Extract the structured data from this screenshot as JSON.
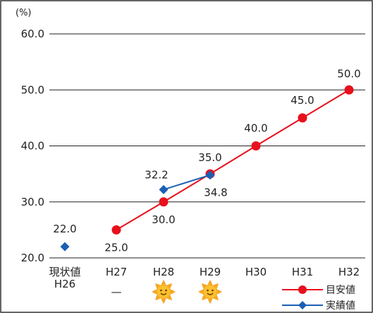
{
  "chart_data": {
    "type": "line",
    "ylabel": "(%)",
    "ylim": [
      20,
      60
    ],
    "yticks": [
      "20.0",
      "30.0",
      "40.0",
      "50.0",
      "60.0"
    ],
    "categories": [
      "現状値\nH26",
      "H27",
      "H28",
      "H29",
      "H30",
      "H31",
      "H32"
    ],
    "series": [
      {
        "name": "目安値",
        "color": "#e8101c",
        "marker": "circle",
        "values": [
          null,
          25.0,
          30.0,
          35.0,
          40.0,
          45.0,
          50.0
        ],
        "labels": [
          "",
          "25.0",
          "30.0",
          "35.0",
          "40.0",
          "45.0",
          "50.0"
        ]
      },
      {
        "name": "実績値",
        "color": "#1a5fb4",
        "marker": "diamond",
        "values": [
          22.0,
          null,
          32.2,
          34.8,
          null,
          null,
          null
        ],
        "labels": [
          "22.0",
          "",
          "32.2",
          "34.8",
          "",
          "",
          ""
        ]
      }
    ],
    "evaluation": [
      "",
      "—",
      "sun-icon",
      "sun-icon",
      "",
      "",
      ""
    ],
    "grid": "horizontal",
    "legend": "bottom-right"
  }
}
